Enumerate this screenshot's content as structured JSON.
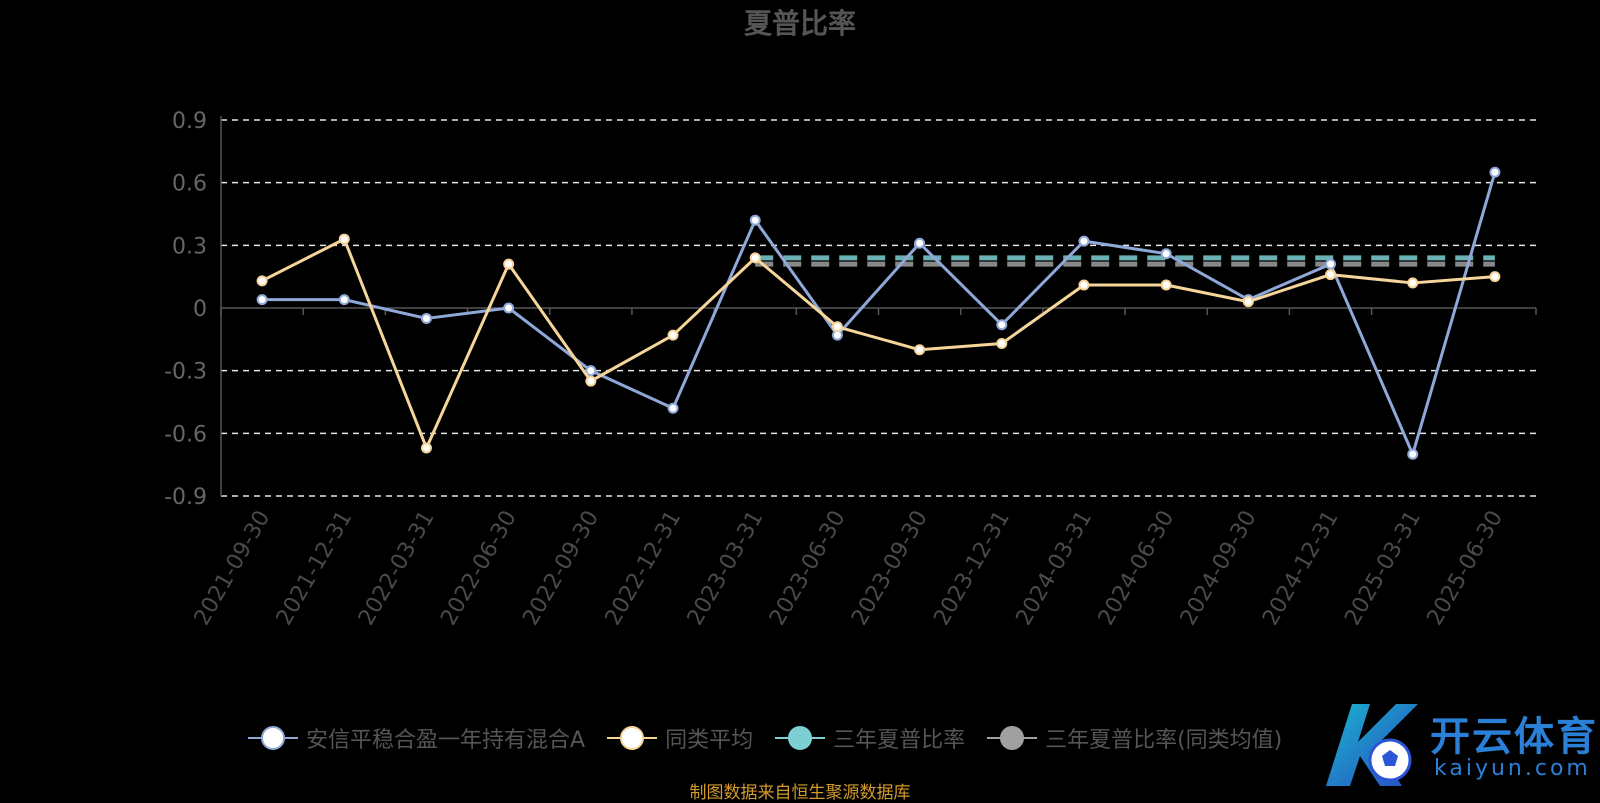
{
  "chart_data": {
    "type": "line",
    "title": "夏普比率",
    "categories": [
      "2021-09-30",
      "2021-12-31",
      "2022-03-31",
      "2022-06-30",
      "2022-09-30",
      "2022-12-31",
      "2023-03-31",
      "2023-06-30",
      "2023-09-30",
      "2023-12-31",
      "2024-03-31",
      "2024-06-30",
      "2024-09-30",
      "2024-12-31",
      "2025-03-31",
      "2025-06-30"
    ],
    "y_ticks": [
      "0.9",
      "0.6",
      "0.3",
      "0",
      "-0.3",
      "-0.6",
      "-0.9"
    ],
    "ylim": [
      -0.9,
      0.9
    ],
    "grid": true,
    "legend_position": "bottom",
    "series": [
      {
        "name": "安信平稳合盈一年持有混合A",
        "color": "#8fa8d8",
        "values": [
          0.04,
          0.04,
          -0.05,
          0.0,
          -0.3,
          -0.48,
          0.42,
          -0.13,
          0.31,
          -0.08,
          0.32,
          0.26,
          0.04,
          0.21,
          -0.7,
          0.65
        ]
      },
      {
        "name": "同类平均",
        "color": "#f5d59a",
        "values": [
          0.13,
          0.33,
          -0.67,
          0.21,
          -0.35,
          -0.13,
          0.24,
          -0.09,
          -0.2,
          -0.17,
          0.11,
          0.11,
          0.03,
          0.16,
          0.12,
          0.15
        ]
      },
      {
        "name": "三年夏普比率",
        "color": "#7ecfd4",
        "line_style": "dashed",
        "x_range": [
          "2023-03-31",
          "2025-06-30"
        ],
        "value": 0.24
      },
      {
        "name": "三年夏普比率(同类均值)",
        "color": "#a0a0a0",
        "line_style": "dashed",
        "x_range": [
          "2023-03-31",
          "2025-06-30"
        ],
        "value": 0.21
      }
    ],
    "source": "制图数据来自恒生聚源数据库"
  },
  "watermark": {
    "brand": "开云体育",
    "domain": "kaiyun.com"
  }
}
